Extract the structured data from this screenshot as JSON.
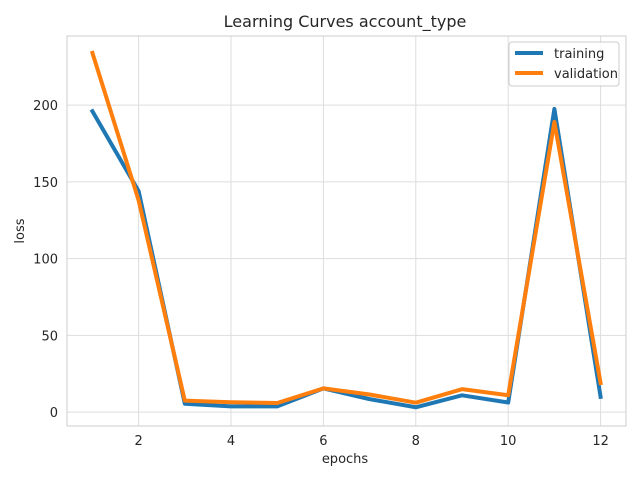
{
  "chart_data": {
    "type": "line",
    "title": "Learning Curves account_type",
    "xlabel": "epochs",
    "ylabel": "loss",
    "x": [
      1,
      2,
      3,
      4,
      5,
      6,
      7,
      8,
      9,
      10,
      11,
      12
    ],
    "xlim": [
      0.45,
      12.55
    ],
    "ylim": [
      -9,
      245
    ],
    "xticks": [
      2,
      4,
      6,
      8,
      10,
      12
    ],
    "yticks": [
      0,
      50,
      100,
      150,
      200
    ],
    "grid": true,
    "legend_position": "top-right",
    "series": [
      {
        "name": "training",
        "color": "#1f77b4",
        "values": [
          196,
          144,
          5.5,
          3.8,
          3.8,
          15.5,
          8.5,
          3.2,
          11,
          6.3,
          197.5,
          10
        ]
      },
      {
        "name": "validation",
        "color": "#ff7f0e",
        "values": [
          234,
          138,
          7.5,
          6.5,
          6,
          15.5,
          11.5,
          6.2,
          15,
          11,
          189,
          19
        ]
      }
    ]
  }
}
